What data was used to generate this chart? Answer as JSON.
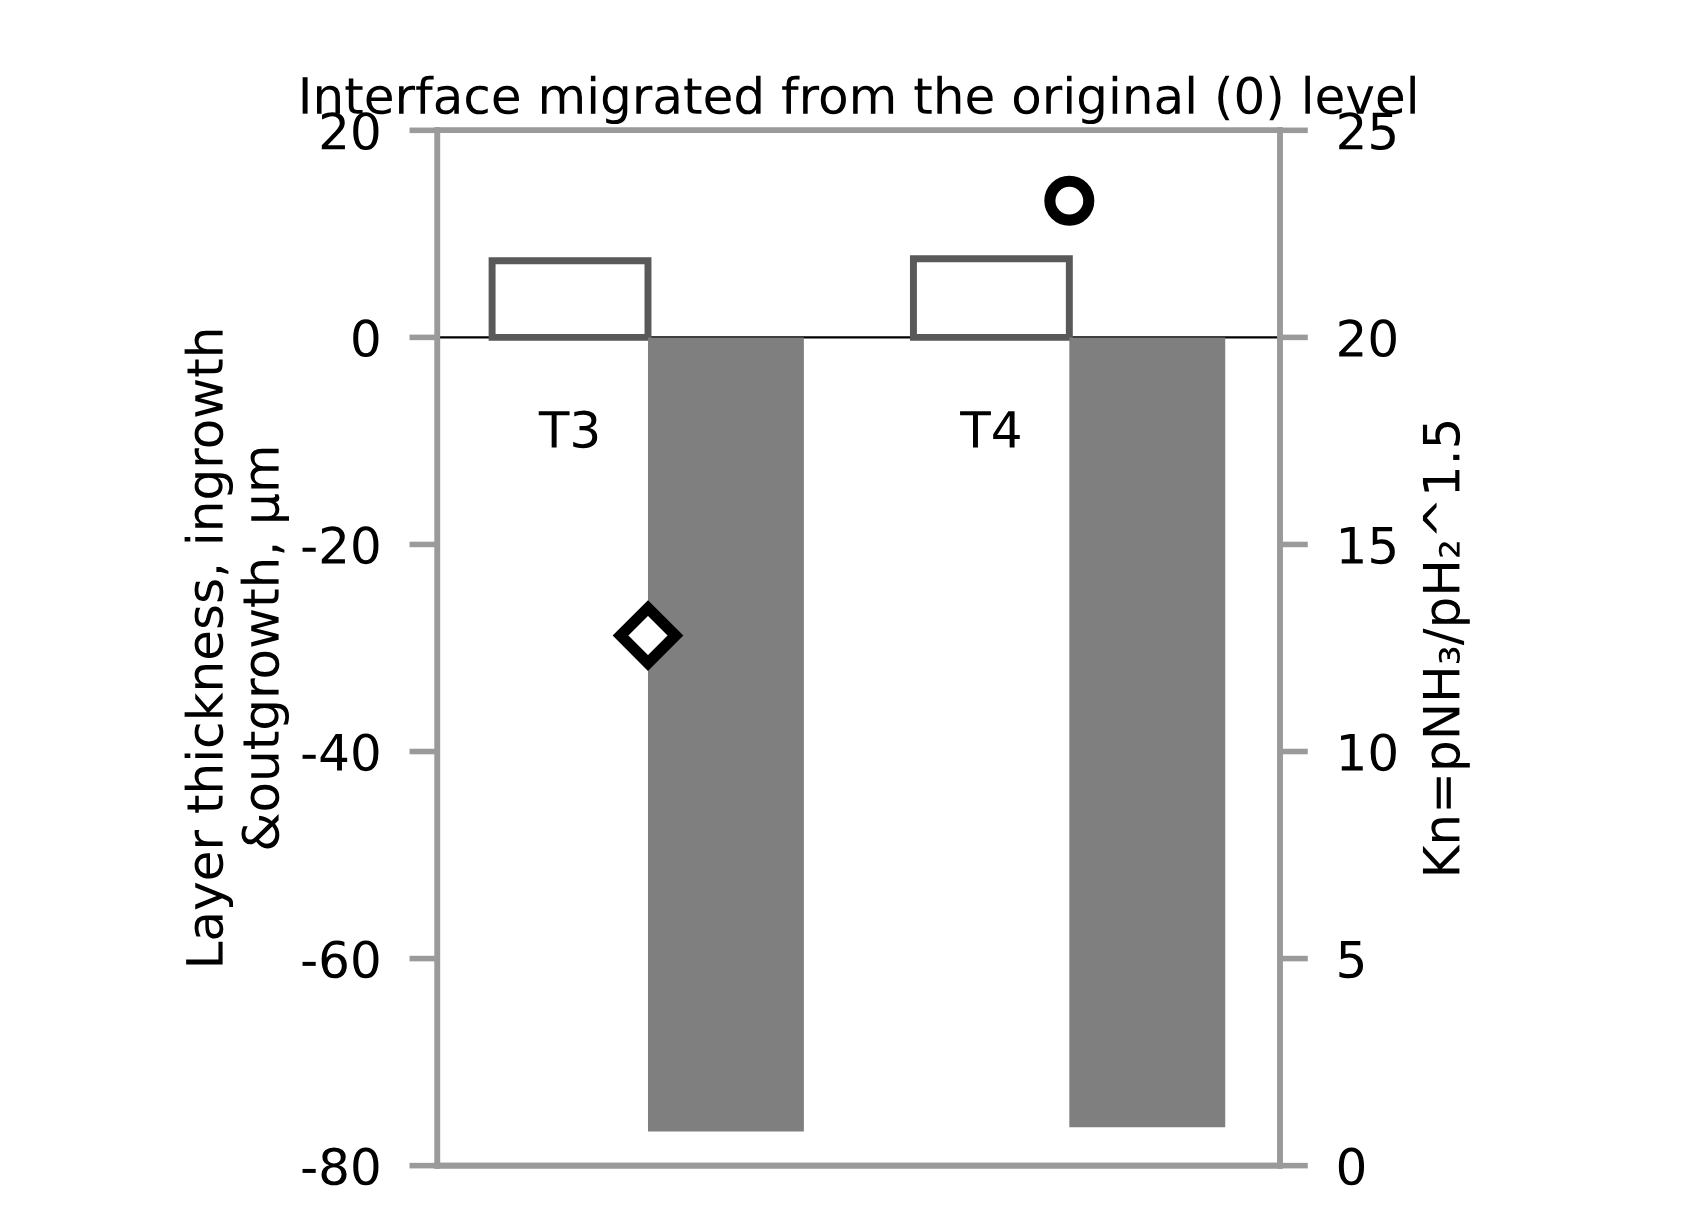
{
  "chart_data": {
    "type": "bar",
    "title": "Interface migrated from the original (0) level",
    "ylabel": "Layer thickness, ingrowth\n&outgrowth, µm",
    "y2label": "Kn=pNH₃/pH₂^1.5",
    "categories": [
      "T3",
      "T4"
    ],
    "series": [
      {
        "color": "#ffffff",
        "values": [
          7.4,
          7.6
        ]
      },
      {
        "color": "#7f7f7f",
        "values": [
          -76.7,
          -76.3
        ]
      },
      {
        "type": "scatter",
        "axis": "y2",
        "marker": "diamond",
        "color": "#000000",
        "values": [
          12.8,
          null
        ]
      },
      {
        "type": "scatter",
        "axis": "y2",
        "marker": "circle",
        "color": "#000000",
        "values": [
          null,
          23.3
        ]
      }
    ],
    "ylim": [
      -80,
      20
    ],
    "yticks": [
      -80,
      -60,
      -40,
      -20,
      0,
      20
    ],
    "y2lim": [
      0,
      25
    ],
    "y2ticks": [
      0,
      5,
      10,
      15,
      20,
      25
    ],
    "grid": false,
    "legend": false
  }
}
